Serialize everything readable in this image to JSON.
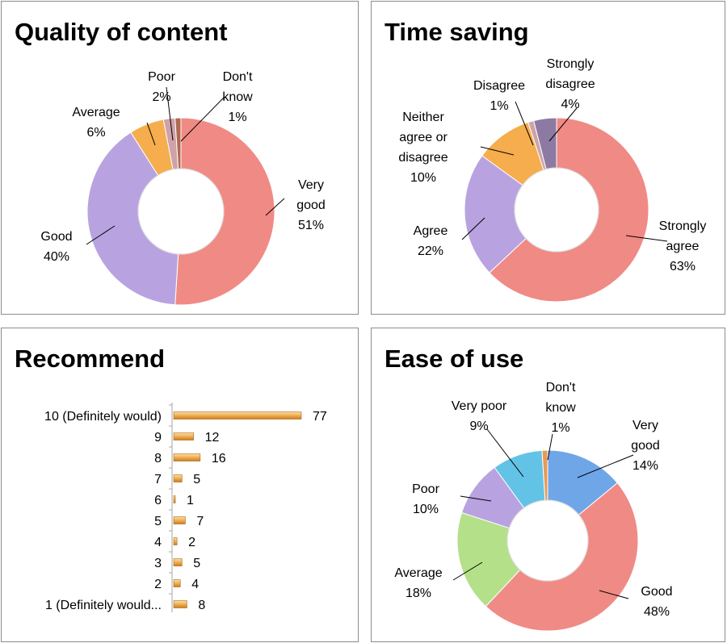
{
  "chart_data": [
    {
      "type": "pie",
      "variant": "donut",
      "title": "Quality of content",
      "slices": [
        {
          "label": "Very good",
          "value": 51,
          "pct": "51%",
          "color": "#f08a85"
        },
        {
          "label": "Good",
          "value": 40,
          "pct": "40%",
          "color": "#b8a3e0"
        },
        {
          "label": "Average",
          "value": 6,
          "pct": "6%",
          "color": "#f5ad4d"
        },
        {
          "label": "Poor",
          "value": 2,
          "pct": "2%",
          "color": "#cfa2a9"
        },
        {
          "label": "Don't know",
          "value": 1,
          "pct": "1%",
          "color": "#b06a52"
        }
      ]
    },
    {
      "type": "pie",
      "variant": "donut",
      "title": "Time saving",
      "slices": [
        {
          "label": "Strongly agree",
          "value": 63,
          "pct": "63%",
          "color": "#f08a85"
        },
        {
          "label": "Agree",
          "value": 22,
          "pct": "22%",
          "color": "#b8a3e0"
        },
        {
          "label": "Neither agree or disagree",
          "value": 10,
          "pct": "10%",
          "color": "#f5ad4d"
        },
        {
          "label": "Disagree",
          "value": 1,
          "pct": "1%",
          "color": "#cfa2a9"
        },
        {
          "label": "Strongly disagree",
          "value": 4,
          "pct": "4%",
          "color": "#8c7aa3"
        }
      ]
    },
    {
      "type": "bar",
      "orientation": "horizontal",
      "title": "Recommend",
      "categories": [
        "10 (Definitely would)",
        "9",
        "8",
        "7",
        "6",
        "5",
        "4",
        "3",
        "2",
        "1 (Definitely would..."
      ],
      "values": [
        77,
        12,
        16,
        5,
        1,
        7,
        2,
        5,
        4,
        8
      ],
      "color": "#f0a84a",
      "gridlines": false
    },
    {
      "type": "pie",
      "variant": "donut",
      "title": "Ease of use",
      "slices": [
        {
          "label": "Very good",
          "value": 14,
          "pct": "14%",
          "color": "#6fa6e8"
        },
        {
          "label": "Good",
          "value": 48,
          "pct": "48%",
          "color": "#f08a85"
        },
        {
          "label": "Average",
          "value": 18,
          "pct": "18%",
          "color": "#b4e08a"
        },
        {
          "label": "Poor",
          "value": 10,
          "pct": "10%",
          "color": "#b8a3e0"
        },
        {
          "label": "Very poor",
          "value": 9,
          "pct": "9%",
          "color": "#63c3e6"
        },
        {
          "label": "Don't know",
          "value": 1,
          "pct": "1%",
          "color": "#e89a55"
        }
      ]
    }
  ]
}
